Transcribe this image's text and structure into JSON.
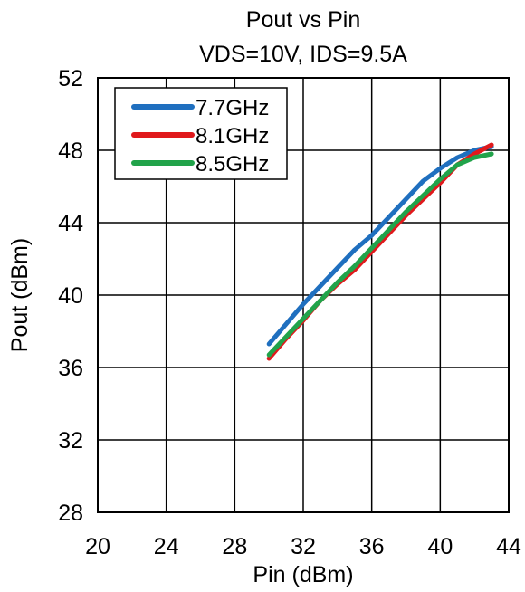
{
  "chart_data": {
    "type": "line",
    "title": "Pout vs Pin",
    "subtitle": "VDS=10V, IDS=9.5A",
    "xlabel": "Pin (dBm)",
    "ylabel": "Pout (dBm)",
    "xlim": [
      20,
      44
    ],
    "ylim": [
      28,
      52
    ],
    "xticks": [
      20,
      24,
      28,
      32,
      36,
      40,
      44
    ],
    "yticks": [
      28,
      32,
      36,
      40,
      44,
      48,
      52
    ],
    "xtick_labels": [
      "20",
      "24",
      "28",
      "32",
      "36",
      "40",
      "44"
    ],
    "ytick_labels": [
      "28",
      "32",
      "36",
      "40",
      "44",
      "48",
      "52"
    ],
    "grid": true,
    "legend_position": "top-left",
    "series": [
      {
        "name": "7.7GHz",
        "color": "#1f6fbf",
        "x": [
          30,
          31,
          32,
          33,
          34,
          35,
          36,
          37,
          38,
          39,
          40,
          41,
          42,
          43
        ],
        "y": [
          37.3,
          38.4,
          39.5,
          40.5,
          41.5,
          42.5,
          43.3,
          44.3,
          45.3,
          46.3,
          47.0,
          47.6,
          48.0,
          48.2
        ]
      },
      {
        "name": "8.1GHz",
        "color": "#e0191c",
        "x": [
          30,
          31,
          32,
          33,
          34,
          35,
          36,
          37,
          38,
          39,
          40,
          41,
          42,
          43
        ],
        "y": [
          36.5,
          37.6,
          38.6,
          39.7,
          40.6,
          41.4,
          42.4,
          43.4,
          44.4,
          45.3,
          46.2,
          47.2,
          47.8,
          48.3
        ]
      },
      {
        "name": "8.5GHz",
        "color": "#21a34a",
        "x": [
          30,
          31,
          32,
          33,
          34,
          35,
          36,
          37,
          38,
          39,
          40,
          41,
          42,
          43
        ],
        "y": [
          36.7,
          37.7,
          38.7,
          39.7,
          40.7,
          41.6,
          42.6,
          43.6,
          44.6,
          45.5,
          46.4,
          47.2,
          47.6,
          47.8
        ]
      }
    ]
  }
}
